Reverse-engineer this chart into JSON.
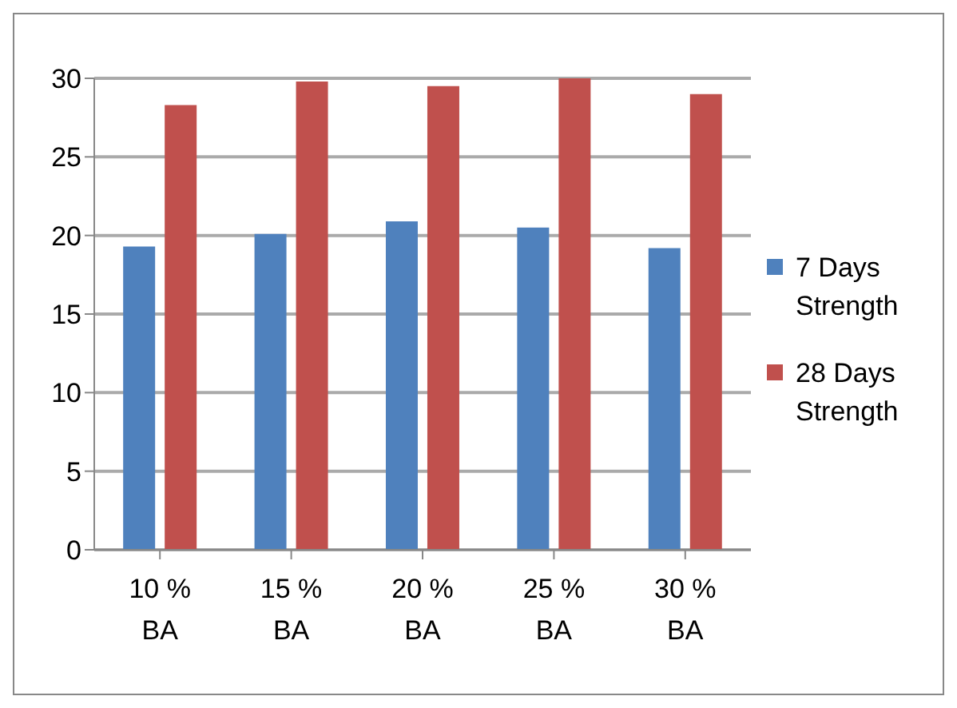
{
  "chart_data": {
    "type": "bar",
    "categories": [
      "10 % BA",
      "15 % BA",
      "20 % BA",
      "25 % BA",
      "30 % BA"
    ],
    "series": [
      {
        "name": "7 Days Strength",
        "color": "#4f81bd",
        "values": [
          19.3,
          20.1,
          20.9,
          20.5,
          19.2
        ]
      },
      {
        "name": "28 Days Strength",
        "color": "#c0504d",
        "values": [
          28.3,
          29.8,
          29.5,
          30,
          29.0
        ]
      }
    ],
    "ylim": [
      0,
      30
    ],
    "yticks": [
      0,
      5,
      10,
      15,
      20,
      25,
      30
    ],
    "grid": "y",
    "legend": "right"
  }
}
